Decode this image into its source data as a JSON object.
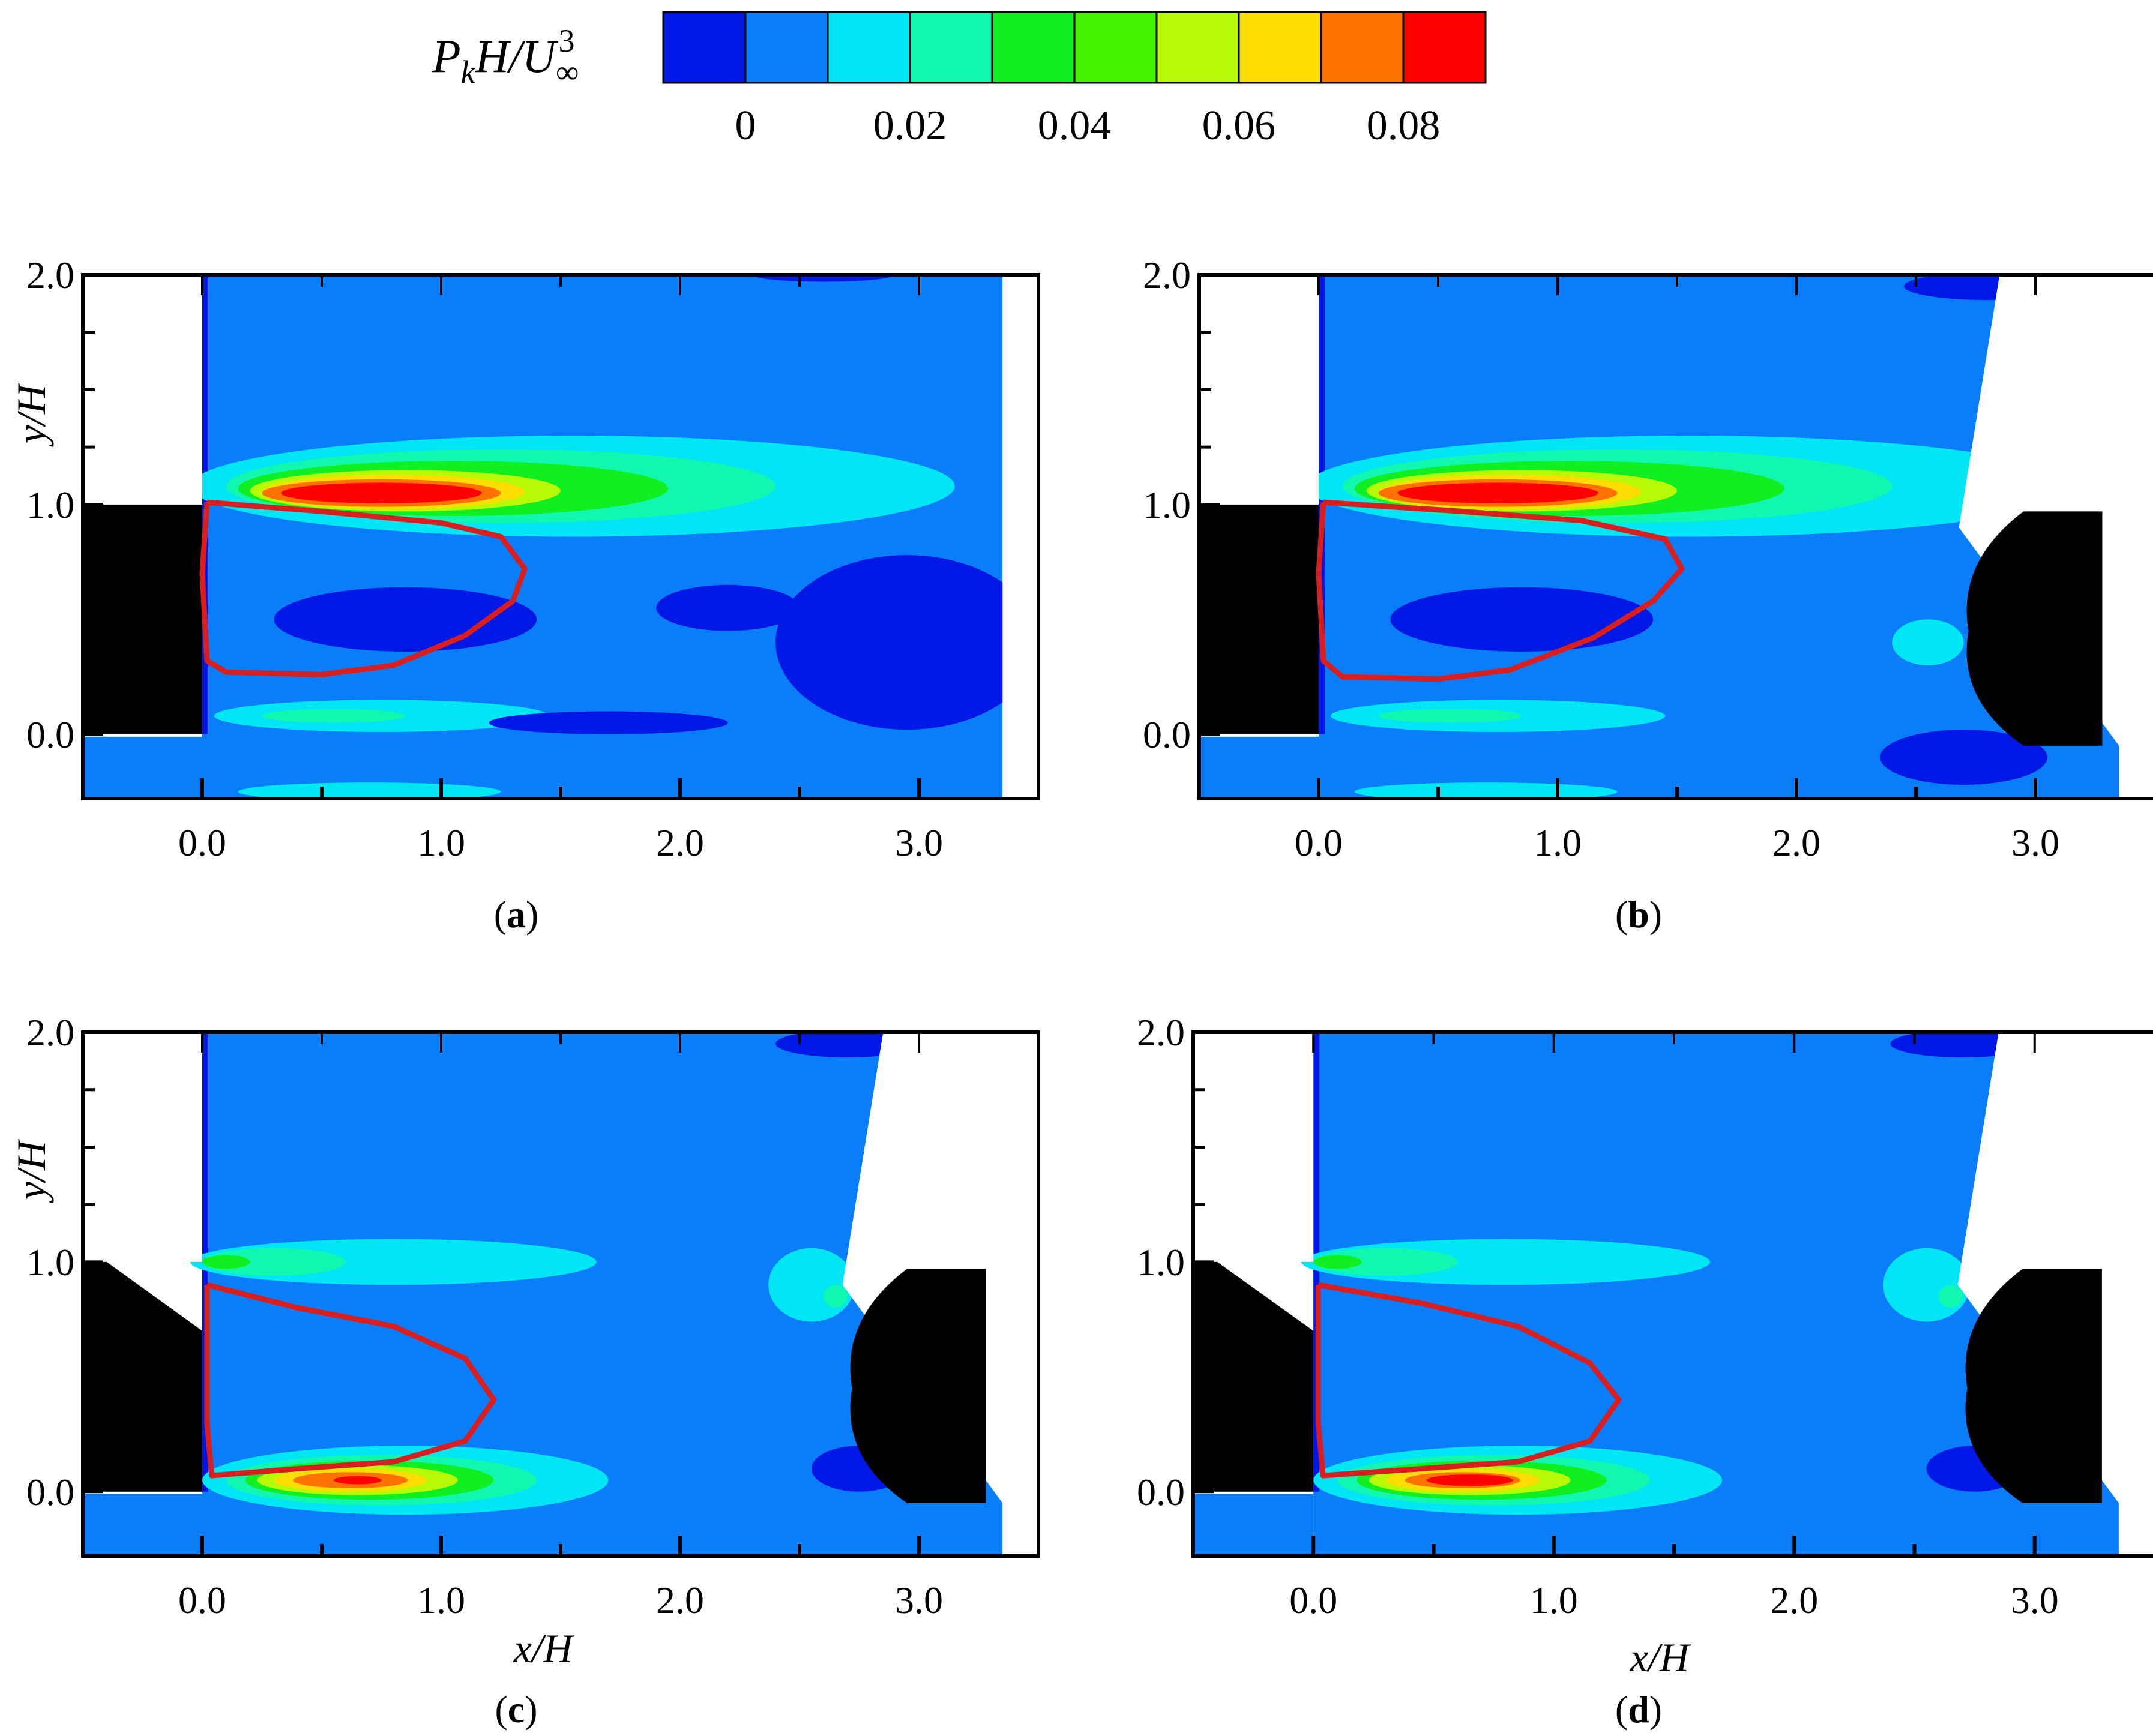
{
  "colors": {
    "recirculation_contour": "#d81e1e",
    "background_field": "#0a7dfa",
    "solid_body": "#000000"
  },
  "colorbar": {
    "label": "P_k H / U_∞^3",
    "label_parts": {
      "p": "P",
      "k": "k",
      "h": "H/U",
      "inf": "∞",
      "sup": "3"
    },
    "levels": [
      0,
      0.01,
      0.02,
      0.03,
      0.04,
      0.05,
      0.06,
      0.07,
      0.08
    ],
    "colors": [
      "#0018e6",
      "#0a7dfa",
      "#00e6f5",
      "#12f7b0",
      "#10ef22",
      "#42f200",
      "#b6fa06",
      "#ffdd00",
      "#ff7200",
      "#ff0000"
    ],
    "tick_values": [
      0,
      0.02,
      0.04,
      0.06,
      0.08
    ],
    "tick_labels": [
      "0",
      "0.02",
      "0.04",
      "0.06",
      "0.08"
    ]
  },
  "chart_data": [
    {
      "type": "heatmap",
      "panel": "a",
      "caption": "a",
      "xlabel": "",
      "ylabel": "y/H",
      "xlim": [
        -0.5,
        3.5
      ],
      "ylim": [
        -0.28,
        2.0
      ],
      "x_ticks": [
        0.0,
        1.0,
        2.0,
        3.0
      ],
      "x_tick_labels": [
        "0.0",
        "1.0",
        "2.0",
        "3.0"
      ],
      "y_ticks": [
        0.0,
        1.0,
        2.0
      ],
      "y_tick_labels": [
        "0.0",
        "1.0",
        "2.0"
      ],
      "field_x_range": [
        0.0,
        3.35
      ],
      "shear_layer_peak": {
        "x": 0.75,
        "y": 1.05,
        "value": 0.08
      },
      "recirculation_contour": [
        [
          0.02,
          1.01
        ],
        [
          0.5,
          0.97
        ],
        [
          1.0,
          0.92
        ],
        [
          1.25,
          0.86
        ],
        [
          1.35,
          0.72
        ],
        [
          1.3,
          0.58
        ],
        [
          1.1,
          0.43
        ],
        [
          0.8,
          0.3
        ],
        [
          0.5,
          0.26
        ],
        [
          0.1,
          0.27
        ],
        [
          0.02,
          0.32
        ],
        [
          0.0,
          0.7
        ],
        [
          0.02,
          1.01
        ]
      ]
    },
    {
      "type": "heatmap",
      "panel": "b",
      "caption": "b",
      "xlabel": "",
      "ylabel": "",
      "xlim": [
        -0.5,
        3.5
      ],
      "ylim": [
        -0.28,
        2.0
      ],
      "x_ticks": [
        0.0,
        1.0,
        2.0,
        3.0
      ],
      "x_tick_labels": [
        "0.0",
        "1.0",
        "2.0",
        "3.0"
      ],
      "y_ticks": [
        0.0,
        1.0,
        2.0
      ],
      "y_tick_labels": [
        "0.0",
        "1.0",
        "2.0"
      ],
      "field_x_range": [
        0.0,
        3.35
      ],
      "shear_layer_peak": {
        "x": 0.75,
        "y": 1.05,
        "value": 0.08
      },
      "recirculation_contour": [
        [
          0.02,
          1.01
        ],
        [
          0.6,
          0.97
        ],
        [
          1.1,
          0.93
        ],
        [
          1.45,
          0.85
        ],
        [
          1.52,
          0.72
        ],
        [
          1.4,
          0.58
        ],
        [
          1.15,
          0.42
        ],
        [
          0.8,
          0.28
        ],
        [
          0.5,
          0.24
        ],
        [
          0.1,
          0.25
        ],
        [
          0.02,
          0.32
        ],
        [
          0.0,
          0.7
        ],
        [
          0.02,
          1.01
        ]
      ]
    },
    {
      "type": "heatmap",
      "panel": "c",
      "caption": "c",
      "xlabel": "x/H",
      "ylabel": "y/H",
      "xlim": [
        -0.5,
        3.5
      ],
      "ylim": [
        -0.28,
        2.0
      ],
      "x_ticks": [
        0.0,
        1.0,
        2.0,
        3.0
      ],
      "x_tick_labels": [
        "0.0",
        "1.0",
        "2.0",
        "3.0"
      ],
      "y_ticks": [
        0.0,
        1.0,
        2.0
      ],
      "y_tick_labels": [
        "0.0",
        "1.0",
        "2.0"
      ],
      "field_x_range": [
        0.0,
        3.35
      ],
      "shear_layer_peak": {
        "x": 0.65,
        "y": 0.05,
        "value": 0.07
      },
      "recirculation_contour": [
        [
          0.02,
          0.9
        ],
        [
          0.4,
          0.8
        ],
        [
          0.8,
          0.72
        ],
        [
          1.1,
          0.58
        ],
        [
          1.22,
          0.4
        ],
        [
          1.1,
          0.22
        ],
        [
          0.8,
          0.13
        ],
        [
          0.4,
          0.1
        ],
        [
          0.04,
          0.07
        ],
        [
          0.02,
          0.3
        ],
        [
          0.02,
          0.9
        ]
      ]
    },
    {
      "type": "heatmap",
      "panel": "d",
      "caption": "d",
      "xlabel": "x/H",
      "ylabel": "",
      "xlim": [
        -0.5,
        3.5
      ],
      "ylim": [
        -0.28,
        2.0
      ],
      "x_ticks": [
        0.0,
        1.0,
        2.0,
        3.0
      ],
      "x_tick_labels": [
        "0.0",
        "1.0",
        "2.0",
        "3.0"
      ],
      "y_ticks": [
        0.0,
        1.0,
        2.0
      ],
      "y_tick_labels": [
        "0.0",
        "1.0",
        "2.0"
      ],
      "field_x_range": [
        0.0,
        3.35
      ],
      "shear_layer_peak": {
        "x": 0.65,
        "y": 0.05,
        "value": 0.08
      },
      "recirculation_contour": [
        [
          0.02,
          0.9
        ],
        [
          0.45,
          0.82
        ],
        [
          0.85,
          0.72
        ],
        [
          1.15,
          0.56
        ],
        [
          1.27,
          0.4
        ],
        [
          1.15,
          0.22
        ],
        [
          0.85,
          0.13
        ],
        [
          0.45,
          0.1
        ],
        [
          0.04,
          0.07
        ],
        [
          0.02,
          0.3
        ],
        [
          0.02,
          0.9
        ]
      ]
    }
  ]
}
